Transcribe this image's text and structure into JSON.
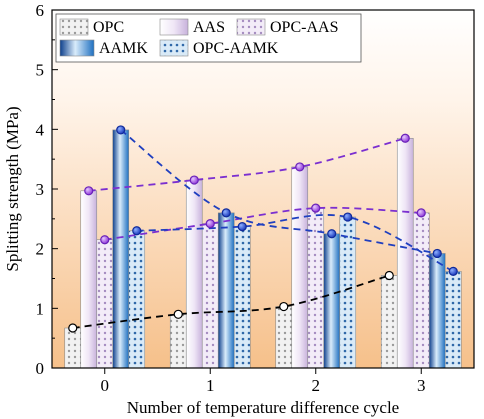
{
  "chart_data": {
    "type": "bar",
    "xlabel": "Number of temperature difference cycle",
    "ylabel": "Splitting strength (MPa)",
    "categories": [
      "0",
      "1",
      "2",
      "3"
    ],
    "ylim": [
      0,
      6
    ],
    "yticks": [
      "0",
      "1",
      "2",
      "3",
      "4",
      "5",
      "6"
    ],
    "grid": false,
    "legend_position": "top-left",
    "series": [
      {
        "name": "OPC",
        "values": [
          0.67,
          0.9,
          1.03,
          1.55
        ],
        "trend_color": "#000000",
        "fill": "dots-grey"
      },
      {
        "name": "AAS",
        "values": [
          2.97,
          3.15,
          3.37,
          3.85
        ],
        "trend_color": "#7b2fd0",
        "fill": "lavender"
      },
      {
        "name": "OPC-AAS",
        "values": [
          2.15,
          2.42,
          2.68,
          2.6
        ],
        "trend_color": "#7b2fd0",
        "fill": "dots-lavender"
      },
      {
        "name": "AAMK",
        "values": [
          3.99,
          2.6,
          2.25,
          1.92
        ],
        "trend_color": "#1f3fbf",
        "fill": "blue-gradient"
      },
      {
        "name": "OPC-AAMK",
        "values": [
          2.3,
          2.37,
          2.53,
          1.62
        ],
        "trend_color": "#1f3fbf",
        "fill": "dots-blue"
      }
    ],
    "colors": {
      "background_top": "#ffffff",
      "background_bottom": "#f7c28f",
      "purple_marker": "#9b3ee0",
      "blue_marker": "#1a3fd6",
      "dark_marker": "#ffffff"
    }
  }
}
